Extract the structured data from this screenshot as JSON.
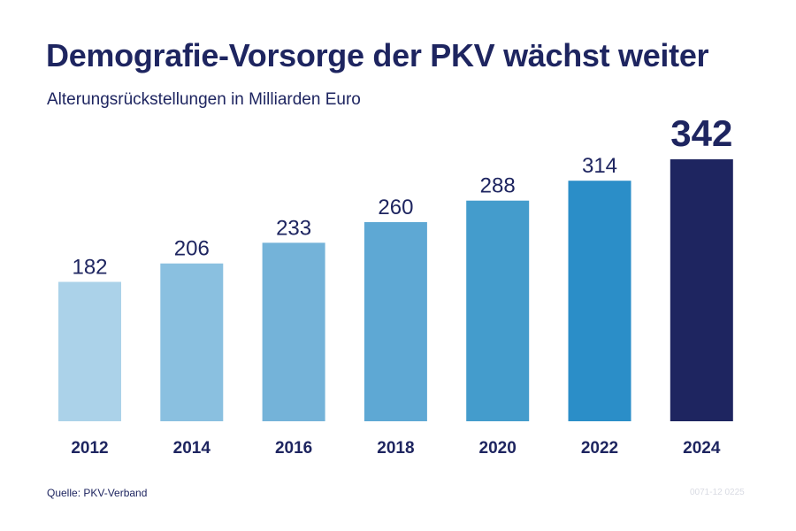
{
  "title": "Demografie-Vorsorge der PKV wächst weiter",
  "subtitle": "Alterungsrückstellungen in Milliarden Euro",
  "source": "Quelle: PKV-Verband",
  "code": "0071-12 0225",
  "chart_data": {
    "type": "bar",
    "categories": [
      "2012",
      "2014",
      "2016",
      "2018",
      "2020",
      "2022",
      "2024"
    ],
    "values": [
      182,
      206,
      233,
      260,
      288,
      314,
      342
    ],
    "value_labels": [
      "182",
      "206",
      "233",
      "260",
      "288",
      "314",
      "342"
    ],
    "title": "Demografie-Vorsorge der PKV wächst weiter",
    "subtitle": "Alterungsrückstellungen in Milliarden Euro",
    "xlabel": "",
    "ylabel": "",
    "ylim": [
      0,
      342
    ],
    "grid": false,
    "legend": "none",
    "colors": [
      "#abd2e9",
      "#8ac0e0",
      "#74b3d9",
      "#5ea8d4",
      "#449ccc",
      "#2b8ec8",
      "#1e2560"
    ],
    "label_color": "#1e2560",
    "highlight_index": 6
  }
}
